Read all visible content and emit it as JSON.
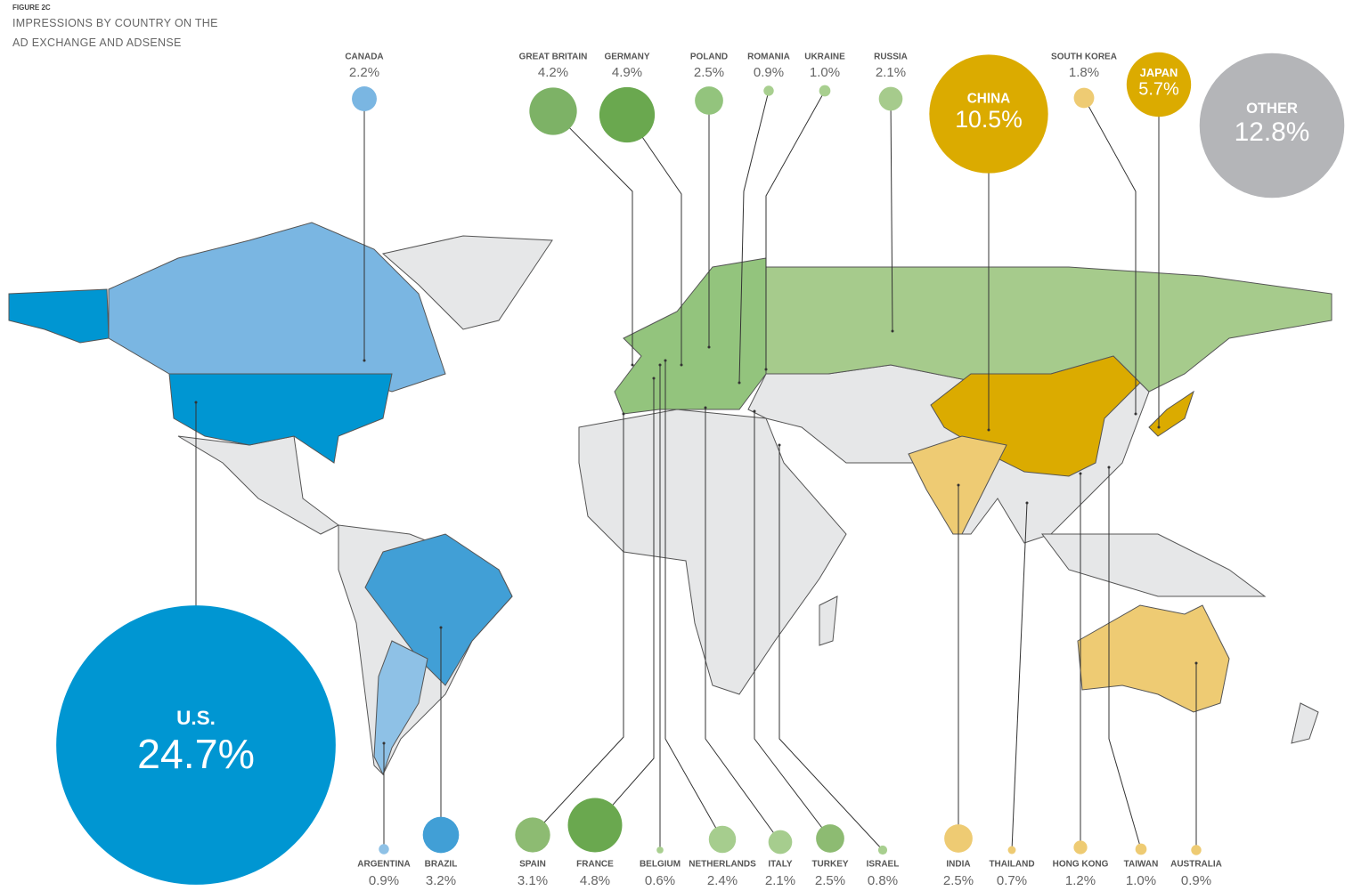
{
  "chart_data": {
    "type": "bubble",
    "figure_label": "FIGURE 2C",
    "title": "IMPRESSIONS BY COUNTRY ON THE AD EXCHANGE AND ADSENSE",
    "categories": [
      "CANADA",
      "GREAT BRITAIN",
      "GERMANY",
      "POLAND",
      "ROMANIA",
      "UKRAINE",
      "RUSSIA",
      "CHINA",
      "SOUTH KOREA",
      "JAPAN",
      "OTHER",
      "U.S.",
      "ARGENTINA",
      "BRAZIL",
      "SPAIN",
      "FRANCE",
      "BELGIUM",
      "NETHERLANDS",
      "ITALY",
      "TURKEY",
      "ISRAEL",
      "INDIA",
      "THAILAND",
      "HONG KONG",
      "TAIWAN",
      "AUSTRALIA"
    ],
    "values": [
      2.2,
      4.2,
      4.9,
      2.5,
      0.9,
      1.0,
      2.1,
      10.5,
      1.8,
      5.7,
      12.8,
      24.7,
      0.9,
      3.2,
      3.1,
      4.8,
      0.6,
      2.4,
      2.1,
      2.5,
      0.8,
      2.5,
      0.7,
      1.2,
      1.0,
      0.9
    ],
    "value_labels": [
      "2.2%",
      "4.2%",
      "4.9%",
      "2.5%",
      "0.9%",
      "1.0%",
      "2.1%",
      "10.5%",
      "1.8%",
      "5.7%",
      "12.8%",
      "24.7%",
      "0.9%",
      "3.2%",
      "3.1%",
      "4.8%",
      "0.6%",
      "2.4%",
      "2.1%",
      "2.5%",
      "0.8%",
      "2.5%",
      "0.7%",
      "1.2%",
      "1.0%",
      "0.9%"
    ],
    "colors": [
      "#7ab6e2",
      "#7db266",
      "#6aa84f",
      "#93c47d",
      "#a8cf8f",
      "#a8cf8f",
      "#a6cb8c",
      "#dbab00",
      "#eecb73",
      "#dbab00",
      "#b4b5b8",
      "#0096d2",
      "#8ec1e6",
      "#419fd6",
      "#8dbb72",
      "#6aa84f",
      "#a8cf8f",
      "#a6cd8e",
      "#a6cd8e",
      "#8dbb72",
      "#a8cf8f",
      "#eecb73",
      "#eecb73",
      "#eecb73",
      "#eecb73",
      "#eecb73"
    ]
  }
}
